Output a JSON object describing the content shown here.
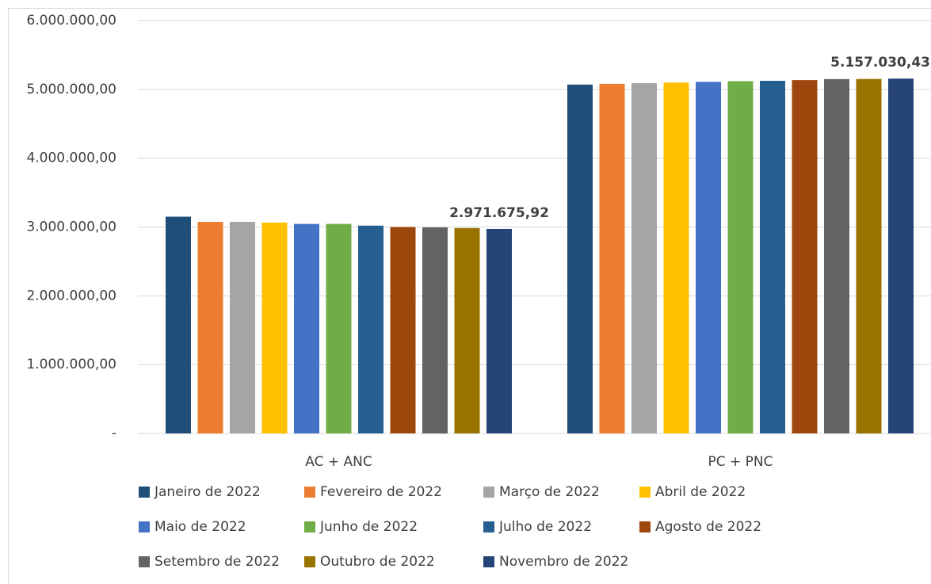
{
  "chart_data": {
    "type": "bar",
    "categories": [
      "AC + ANC",
      "PC + PNC"
    ],
    "series": [
      {
        "name": "Janeiro de 2022",
        "color": "#1f4e79",
        "values": [
          3150000,
          5070000
        ]
      },
      {
        "name": "Fevereiro de 2022",
        "color": "#ed7d31",
        "values": [
          3075000,
          5080000
        ]
      },
      {
        "name": "Março de 2022",
        "color": "#a5a5a5",
        "values": [
          3075000,
          5090000
        ]
      },
      {
        "name": "Abril de 2022",
        "color": "#ffc000",
        "values": [
          3065000,
          5100000
        ]
      },
      {
        "name": "Maio de 2022",
        "color": "#4472c4",
        "values": [
          3045000,
          5110000
        ]
      },
      {
        "name": "Junho de 2022",
        "color": "#70ad47",
        "values": [
          3045000,
          5120000
        ]
      },
      {
        "name": "Julho de 2022",
        "color": "#255e91",
        "values": [
          3020000,
          5125000
        ]
      },
      {
        "name": "Agosto de 2022",
        "color": "#9e480e",
        "values": [
          3000000,
          5135000
        ]
      },
      {
        "name": "Setembro de 2022",
        "color": "#636363",
        "values": [
          2995000,
          5150000
        ]
      },
      {
        "name": "Outubro de 2022",
        "color": "#997300",
        "values": [
          2985000,
          5152000
        ]
      },
      {
        "name": "Novembro de 2022",
        "color": "#264478",
        "values": [
          2971675.92,
          5157030.43
        ],
        "value_labels": [
          "2.971.675,92",
          "5.157.030,43"
        ]
      }
    ],
    "ylim": [
      0,
      6000000
    ],
    "yticks": [
      {
        "value": 0,
        "label": "-"
      },
      {
        "value": 1000000,
        "label": "1.000.000,00"
      },
      {
        "value": 2000000,
        "label": "2.000.000,00"
      },
      {
        "value": 3000000,
        "label": "3.000.000,00"
      },
      {
        "value": 4000000,
        "label": "4.000.000,00"
      },
      {
        "value": 5000000,
        "label": "5.000.000,00"
      },
      {
        "value": 6000000,
        "label": "6.000.000,00"
      }
    ],
    "grid": true,
    "legend": "bottom"
  }
}
